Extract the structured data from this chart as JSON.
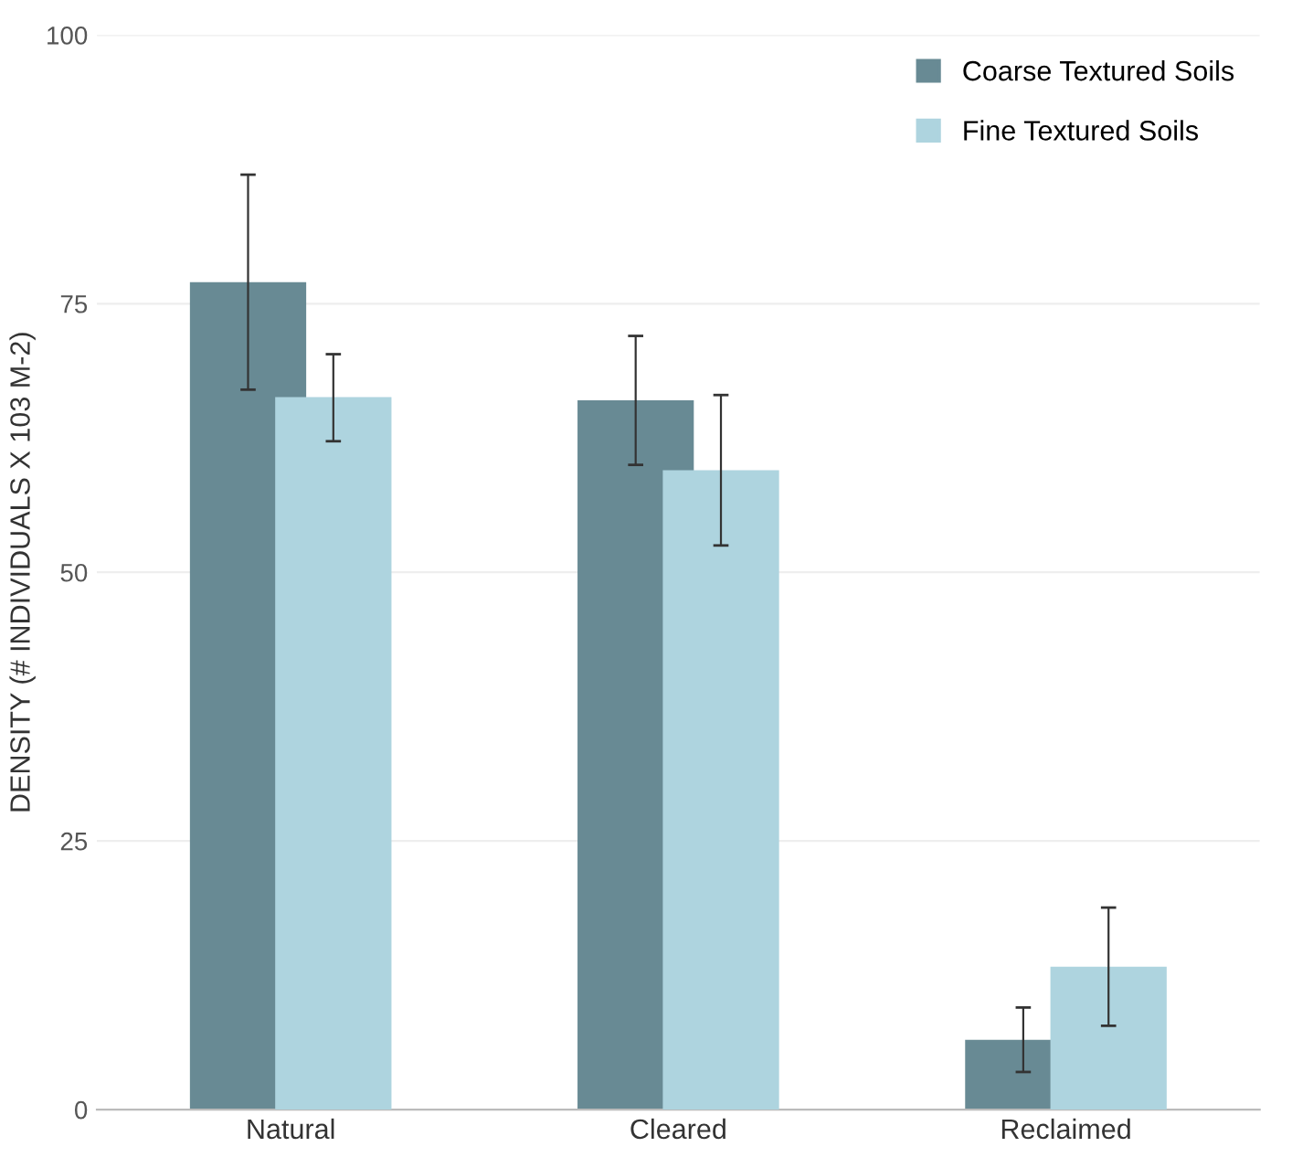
{
  "chart_data": {
    "type": "bar",
    "ylabel": "DENSITY (# INDIVIDUALS X 103 M-2)",
    "categories": [
      "Natural",
      "Cleared",
      "Reclaimed"
    ],
    "series": [
      {
        "name": "Coarse Textured Soils",
        "color": "#688a94",
        "values": [
          77,
          66,
          6.5
        ],
        "errors": [
          [
            67,
            87
          ],
          [
            60,
            72
          ],
          [
            3.5,
            9.5
          ]
        ]
      },
      {
        "name": "Fine Textured Soils",
        "color": "#aed4df",
        "values": [
          66.3,
          59.5,
          13.3
        ],
        "errors": [
          [
            62.2,
            70.3
          ],
          [
            52.5,
            66.5
          ],
          [
            7.8,
            18.8
          ]
        ]
      }
    ],
    "ylim": [
      0,
      100
    ],
    "yticks": [
      0,
      25,
      50,
      75,
      100
    ],
    "grid": "y",
    "legend": "top right"
  }
}
